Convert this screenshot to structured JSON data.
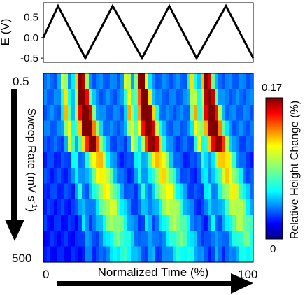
{
  "chart_data": [
    {
      "type": "line",
      "ylabel": "E (V)",
      "ylim": [
        -0.6,
        0.85
      ],
      "yticks": [
        "0.5",
        "0.0",
        "-0.5"
      ],
      "ytick_values": [
        0.5,
        0.0,
        -0.5
      ],
      "x": [
        0,
        7,
        20,
        33,
        47,
        60,
        73,
        87,
        100
      ],
      "values": [
        0.0,
        0.77,
        -0.5,
        0.77,
        -0.5,
        0.77,
        -0.5,
        0.77,
        -0.5
      ],
      "line_color": "#000000"
    },
    {
      "type": "heatmap",
      "xlabel": "Normalized Time (%)",
      "x_tick_labels": [
        "0",
        "100"
      ],
      "ylabel": "Sweep Rate (mV s⁻¹)",
      "y_tick_labels": [
        "0.5",
        "500"
      ],
      "y_range": [
        0.5,
        500
      ],
      "rows": 12,
      "cols": 60,
      "colorbar": {
        "label": "Relative Height Change (%)",
        "max_label": "0.17",
        "min_label": "0",
        "range": [
          0,
          0.17
        ],
        "colors": [
          "#000080",
          "#0000ff",
          "#0080ff",
          "#00ffff",
          "#80ff80",
          "#ffff00",
          "#ff8000",
          "#ff0000",
          "#800000"
        ]
      },
      "row_params": [
        {
          "s": 0.0,
          "amp": 0.15,
          "bg": 0.04
        },
        {
          "s": 0.01,
          "amp": 0.16,
          "bg": 0.04
        },
        {
          "s": 0.02,
          "amp": 0.17,
          "bg": 0.04
        },
        {
          "s": 0.03,
          "amp": 0.16,
          "bg": 0.04
        },
        {
          "s": 0.05,
          "amp": 0.14,
          "bg": 0.035
        },
        {
          "s": 0.08,
          "amp": 0.09,
          "bg": 0.03
        },
        {
          "s": 0.1,
          "amp": 0.08,
          "bg": 0.03
        },
        {
          "s": 0.12,
          "amp": 0.075,
          "bg": 0.03
        },
        {
          "s": 0.14,
          "amp": 0.07,
          "bg": 0.028
        },
        {
          "s": 0.16,
          "amp": 0.065,
          "bg": 0.026
        },
        {
          "s": 0.18,
          "amp": 0.055,
          "bg": 0.025
        },
        {
          "s": 0.2,
          "amp": 0.045,
          "bg": 0.024
        }
      ],
      "peak_centers": [
        0.18,
        0.47,
        0.78
      ],
      "secondary_centers": [
        0.1,
        0.4,
        0.71
      ]
    }
  ]
}
